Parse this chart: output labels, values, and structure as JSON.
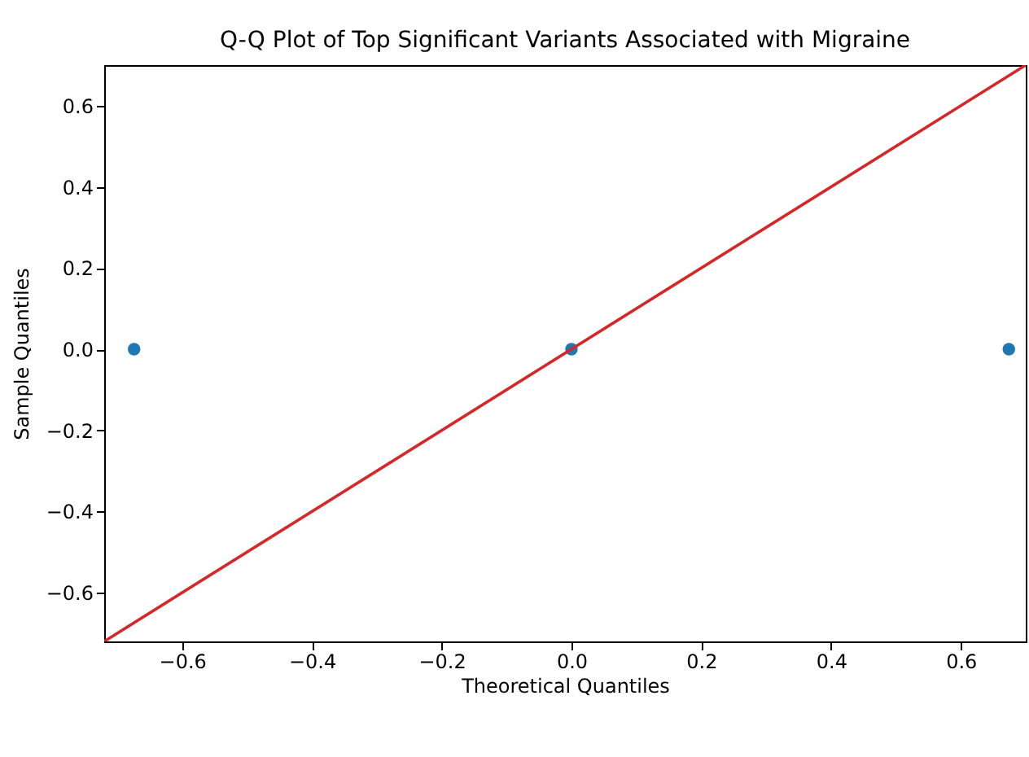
{
  "chart_data": {
    "type": "scatter",
    "title": "Q-Q Plot of Top Significant Variants Associated with Migraine",
    "xlabel": "Theoretical Quantiles",
    "ylabel": "Sample Quantiles",
    "xlim": [
      -0.72,
      0.7
    ],
    "ylim": [
      -0.72,
      0.7
    ],
    "xticks": [
      -0.6,
      -0.4,
      -0.2,
      {
        "value": 0,
        "label": "0.0"
      },
      0.2,
      0.4,
      0.6
    ],
    "yticks": [
      -0.6,
      -0.4,
      -0.2,
      {
        "value": 0,
        "label": "0.0"
      },
      0.2,
      0.4,
      0.6
    ],
    "grid": false,
    "series": [
      {
        "color": "#1f77b4",
        "marker": "circle",
        "x": [
          -0.674,
          0.0,
          0.674
        ],
        "values": [
          0.0,
          0.0,
          0.0
        ]
      },
      {
        "type": "line",
        "color": "#d62728",
        "line_style": "solid",
        "x": [
          -0.72,
          0.7
        ],
        "values": [
          -0.72,
          0.7
        ]
      }
    ]
  }
}
